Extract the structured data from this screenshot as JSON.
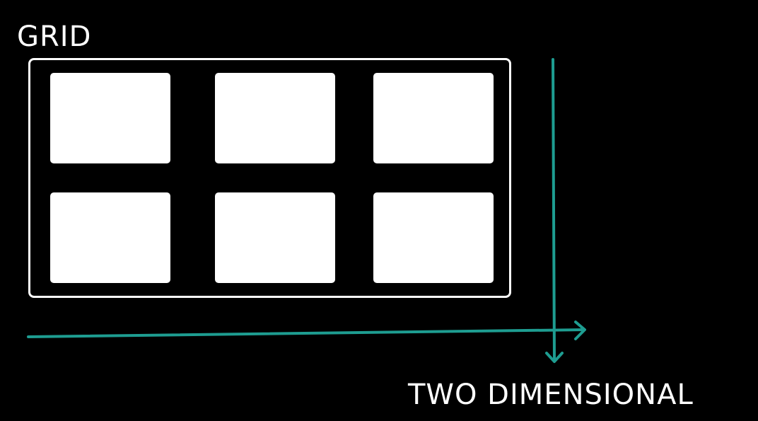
{
  "title": "GRID",
  "footer_label": "TWO DIMENSIONAL",
  "grid": {
    "rows": 2,
    "columns": 3
  },
  "colors": {
    "background": "#000000",
    "foreground": "#ffffff",
    "axis": "#1e9d91"
  },
  "icons": {
    "horizontal_arrow": "arrow-right-icon",
    "vertical_arrow": "arrow-down-icon"
  }
}
